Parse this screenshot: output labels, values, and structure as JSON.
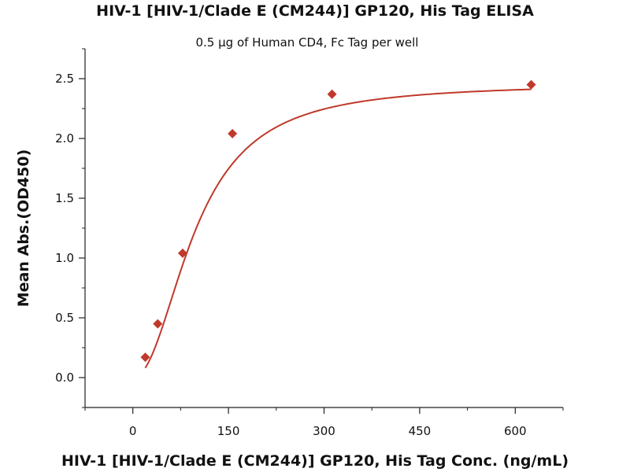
{
  "chart_data": {
    "type": "scatter",
    "title": "HIV-1 [HIV-1/Clade E (CM244)] GP120, His Tag ELISA",
    "subtitle": "0.5 µg of Human CD4, Fc Tag per well",
    "xlabel": "HIV-1 [HIV-1/Clade E (CM244)] GP120, His Tag Conc. (ng/mL)",
    "ylabel": "Mean Abs.(OD450)",
    "xlim": [
      -75,
      675
    ],
    "ylim": [
      -0.25,
      2.75
    ],
    "x_ticks": [
      0,
      150,
      300,
      450,
      600
    ],
    "x_tick_labels": [
      "0",
      "150",
      "300",
      "450",
      "600"
    ],
    "y_ticks": [
      0.0,
      0.5,
      1.0,
      1.5,
      2.0,
      2.5
    ],
    "y_tick_labels": [
      "0.0",
      "0.5",
      "1.0",
      "1.5",
      "2.0",
      "2.5"
    ],
    "grid": false,
    "series": [
      {
        "marker": "diamond",
        "color": "#c0392b",
        "points": [
          {
            "x": 19.53,
            "y": 0.17
          },
          {
            "x": 39.06,
            "y": 0.45
          },
          {
            "x": 78.13,
            "y": 1.04
          },
          {
            "x": 156.25,
            "y": 2.04
          },
          {
            "x": 312.5,
            "y": 2.37
          },
          {
            "x": 625,
            "y": 2.45
          }
        ],
        "fit_curve": "sigmoid"
      }
    ]
  }
}
